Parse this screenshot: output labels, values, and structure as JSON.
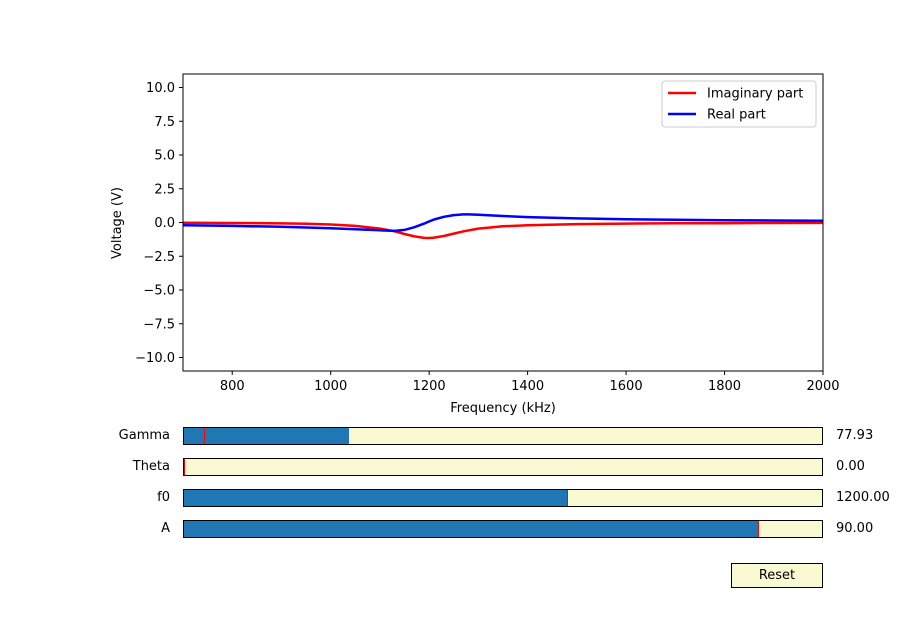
{
  "chart_data": {
    "type": "line",
    "xlabel": "Frequency (kHz)",
    "ylabel": "Voltage (V)",
    "xlim": [
      700,
      2000
    ],
    "ylim": [
      -11,
      11
    ],
    "xticks": [
      800,
      1000,
      1200,
      1400,
      1600,
      1800,
      2000
    ],
    "yticks": [
      -10.0,
      -7.5,
      -5.0,
      -2.5,
      0.0,
      2.5,
      5.0,
      7.5,
      10.0
    ],
    "grid": false,
    "legend_position": "top-right",
    "series": [
      {
        "name": "Imaginary part",
        "color": "#ff0000",
        "x": [
          700,
          800,
          900,
          950,
          1000,
          1050,
          1100,
          1130,
          1150,
          1170,
          1190,
          1200,
          1210,
          1230,
          1250,
          1270,
          1300,
          1350,
          1400,
          1500,
          1600,
          1700,
          1800,
          1900,
          2000
        ],
        "y": [
          -0.02,
          -0.04,
          -0.07,
          -0.1,
          -0.15,
          -0.25,
          -0.45,
          -0.65,
          -0.85,
          -1.03,
          -1.14,
          -1.15,
          -1.12,
          -1.0,
          -0.82,
          -0.65,
          -0.45,
          -0.28,
          -0.2,
          -0.12,
          -0.08,
          -0.06,
          -0.05,
          -0.04,
          -0.03
        ]
      },
      {
        "name": "Real part",
        "color": "#0000ff",
        "x": [
          700,
          800,
          900,
          1000,
          1050,
          1100,
          1130,
          1150,
          1170,
          1190,
          1200,
          1210,
          1230,
          1250,
          1270,
          1280,
          1300,
          1350,
          1400,
          1500,
          1600,
          1700,
          1800,
          1900,
          2000
        ],
        "y": [
          -0.2,
          -0.25,
          -0.32,
          -0.42,
          -0.5,
          -0.58,
          -0.62,
          -0.55,
          -0.35,
          -0.08,
          0.08,
          0.22,
          0.42,
          0.55,
          0.6,
          0.6,
          0.58,
          0.48,
          0.4,
          0.3,
          0.24,
          0.2,
          0.17,
          0.15,
          0.13
        ]
      }
    ]
  },
  "sliders": [
    {
      "label": "Gamma",
      "value": "77.93",
      "fraction": 0.258,
      "init_fraction": 0.032
    },
    {
      "label": "Theta",
      "value": "0.00",
      "fraction": 0.0,
      "init_fraction": 0.0
    },
    {
      "label": "f0",
      "value": "1200.00",
      "fraction": 0.6,
      "init_fraction": 0.6
    },
    {
      "label": "A",
      "value": "90.00",
      "fraction": 0.9,
      "init_fraction": 0.9
    }
  ],
  "reset_label": "Reset"
}
